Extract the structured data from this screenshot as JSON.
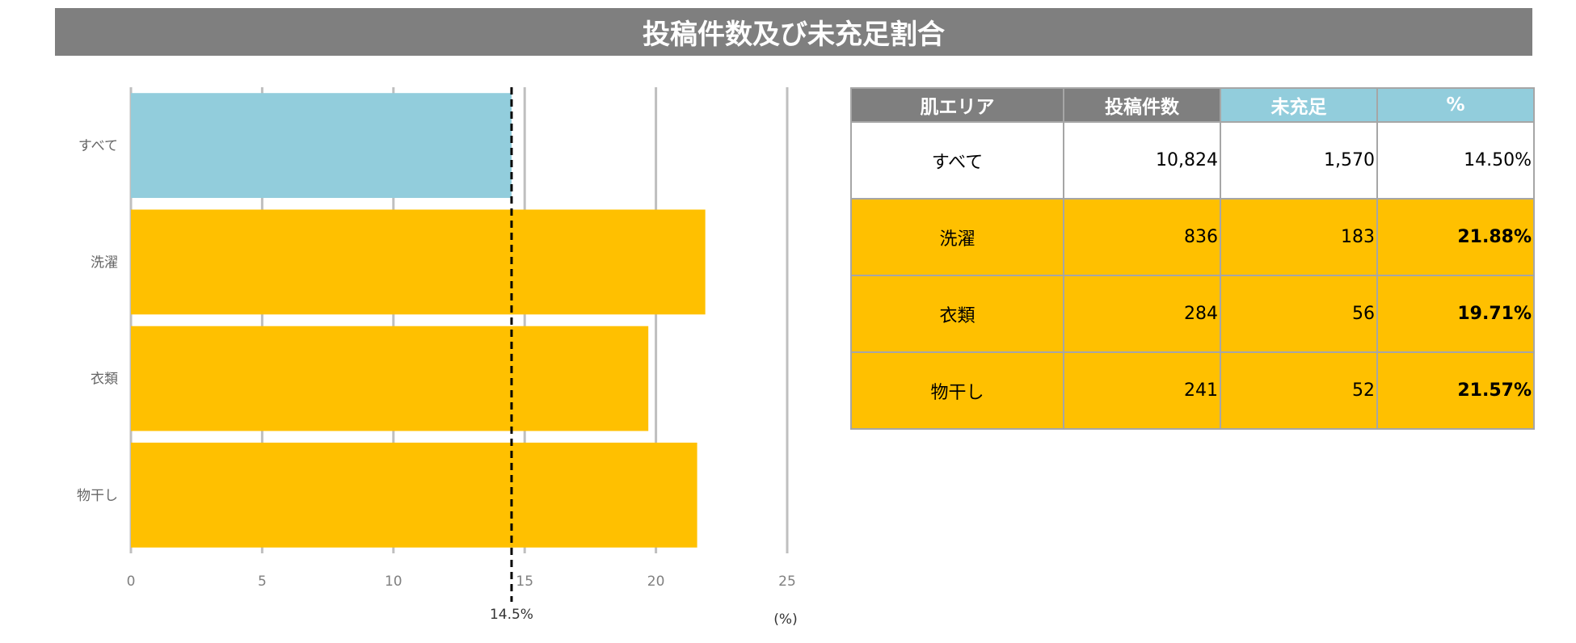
{
  "title": "投稿件数及び未充足割合",
  "chart_data": {
    "type": "bar",
    "orientation": "horizontal",
    "categories": [
      "すべて",
      "洗濯",
      "衣類",
      "物干し"
    ],
    "values": [
      14.5,
      21.88,
      19.71,
      21.57
    ],
    "colors": [
      "#92cddc",
      "#ffc000",
      "#ffc000",
      "#ffc000"
    ],
    "xlim": [
      0,
      25
    ],
    "xticks": [
      "0",
      "5",
      "10",
      "15",
      "20",
      "25"
    ],
    "xunit": "(%)",
    "reference_line": {
      "value": 14.5,
      "label": "14.5%",
      "style": "dashed"
    },
    "grid": true
  },
  "table": {
    "headers": [
      "肌エリア",
      "投稿件数",
      "未充足",
      "%"
    ],
    "rows": [
      {
        "area": "すべて",
        "count": "10,824",
        "unmet": "1,570",
        "pct": "14.50%"
      },
      {
        "area": "洗濯",
        "count": "836",
        "unmet": "183",
        "pct": "21.88%"
      },
      {
        "area": "衣類",
        "count": "284",
        "unmet": "56",
        "pct": "19.71%"
      },
      {
        "area": "物干し",
        "count": "241",
        "unmet": "52",
        "pct": "21.57%"
      }
    ]
  }
}
